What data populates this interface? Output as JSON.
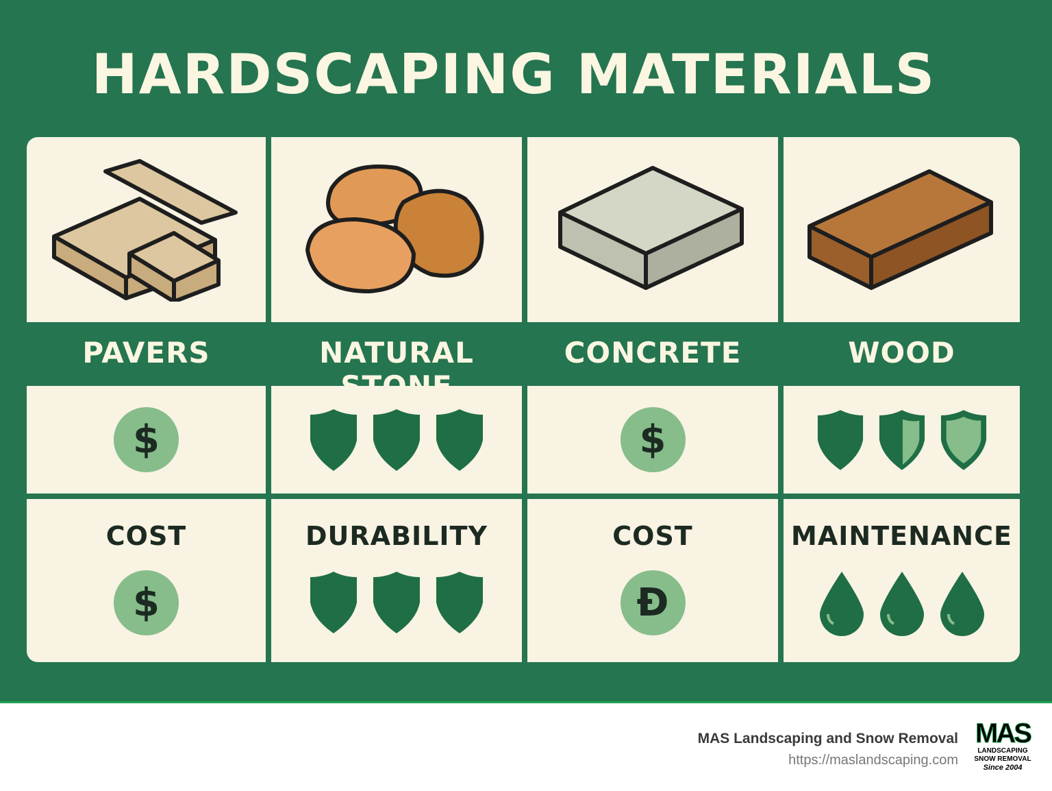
{
  "title": "HARDSCAPING MATERIALS",
  "colors": {
    "background": "#247550",
    "panel": "#f8f3e3",
    "icon_dark": "#1f6e45",
    "icon_light": "#86bd8a"
  },
  "materials": [
    {
      "name": "PAVERS",
      "image_icon": "pavers-icon",
      "rating_icon": "dollar-coin",
      "rating_count": 1,
      "attribute": "COST",
      "attribute_icon": "dollar-coin",
      "attribute_count": 1,
      "symbol": "$"
    },
    {
      "name": "NATURAL STONE",
      "image_icon": "stones-icon",
      "rating_icon": "shield",
      "rating_count": 3,
      "attribute": "DURABILITY",
      "attribute_icon": "shield",
      "attribute_count": 3
    },
    {
      "name": "CONCRETE",
      "image_icon": "concrete-slab-icon",
      "rating_icon": "dollar-coin",
      "rating_count": 1,
      "attribute": "COST",
      "attribute_icon": "dollar-coin",
      "attribute_count": 1,
      "symbol": "$",
      "symbol2": "Đ"
    },
    {
      "name": "WOOD",
      "image_icon": "wood-plank-icon",
      "rating_icon": "shield",
      "rating_levels": [
        "full",
        "half",
        "outline"
      ],
      "attribute": "MAINTENANCE",
      "attribute_icon": "water-drop",
      "attribute_count": 3
    }
  ],
  "footer": {
    "company": "MAS Landscaping and Snow Removal",
    "url": "https://maslandscaping.com",
    "logo_text": "MAS LANDSCAPING SNOW REMOVAL Since 2004"
  }
}
